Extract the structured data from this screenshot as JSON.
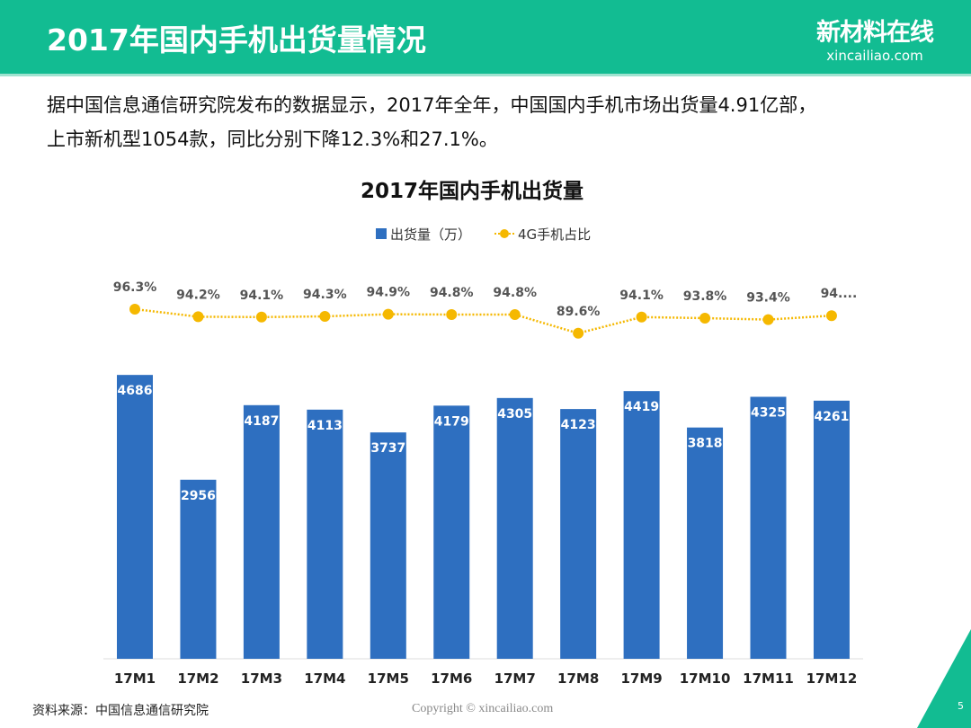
{
  "header": {
    "title": "2017年国内手机出货量情况",
    "logo_cn": "新材料在线",
    "logo_en": "xincailiao.com"
  },
  "description": [
    "据中国信息通信研究院发布的数据显示，2017年全年，中国国内手机市场出货量4.91亿部，",
    "上市新机型1054款，同比分别下降12.3%和27.1%。"
  ],
  "chart_data": {
    "type": "bar",
    "title": "2017年国内手机出货量",
    "categories": [
      "17M1",
      "17M2",
      "17M3",
      "17M4",
      "17M5",
      "17M6",
      "17M7",
      "17M8",
      "17M9",
      "17M10",
      "17M11",
      "17M12"
    ],
    "series": [
      {
        "name": "出货量（万）",
        "type": "bar",
        "color": "#2e6fc0",
        "values": [
          4686,
          2956,
          4187,
          4113,
          3737,
          4179,
          4305,
          4123,
          4419,
          3818,
          4325,
          4261
        ]
      },
      {
        "name": "4G手机占比",
        "type": "line",
        "color": "#f5b800",
        "values": [
          96.3,
          94.2,
          94.1,
          94.3,
          94.9,
          94.8,
          94.8,
          89.6,
          94.1,
          93.8,
          93.4,
          94.5
        ],
        "labels": [
          "96.3%",
          "94.2%",
          "94.1%",
          "94.3%",
          "94.9%",
          "94.8%",
          "94.8%",
          "89.6%",
          "94.1%",
          "93.8%",
          "93.4%",
          "94...."
        ]
      }
    ],
    "legend": "top"
  },
  "footer": {
    "source": "资料来源：中国信息通信研究院",
    "copyright": "Copyright © xincailiao.com",
    "page": "5"
  }
}
